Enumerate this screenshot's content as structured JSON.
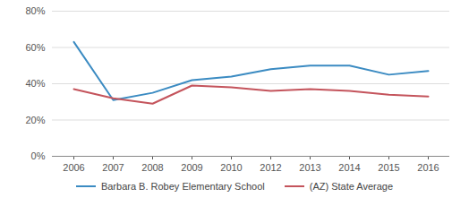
{
  "chart_data": {
    "type": "line",
    "categories": [
      "2006",
      "2007",
      "2008",
      "2009",
      "2010",
      "2012",
      "2013",
      "2014",
      "2015",
      "2016"
    ],
    "series": [
      {
        "name": "Barbara B. Robey Elementary School",
        "color": "#3b8bc2",
        "values": [
          63,
          31,
          35,
          42,
          44,
          48,
          50,
          50,
          45,
          47
        ]
      },
      {
        "name": "(AZ) State Average",
        "color": "#c4545c",
        "values": [
          37,
          32,
          29,
          39,
          38,
          36,
          37,
          36,
          34,
          33
        ]
      }
    ],
    "ylim": [
      0,
      80
    ],
    "yticks": [
      {
        "value": 0,
        "label": "0%"
      },
      {
        "value": 20,
        "label": "20%"
      },
      {
        "value": 40,
        "label": "40%"
      },
      {
        "value": 60,
        "label": "60%"
      },
      {
        "value": 80,
        "label": "80%"
      }
    ],
    "grid": true,
    "legend": "bottom"
  }
}
